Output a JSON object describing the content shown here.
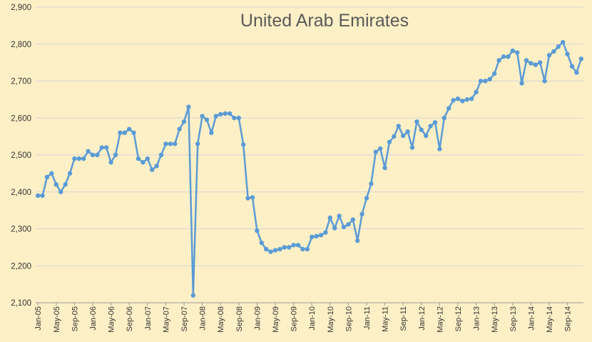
{
  "chart_data": {
    "type": "line",
    "title": "United Arab Emirates",
    "xlabel": "",
    "ylabel": "",
    "ylim": [
      2100,
      2900
    ],
    "y_ticks": [
      "2,100",
      "2,200",
      "2,300",
      "2,400",
      "2,500",
      "2,600",
      "2,700",
      "2,800",
      "2,900"
    ],
    "x_tick_labels": [
      "Jan-05",
      "May-05",
      "Sep-05",
      "Jan-06",
      "May-06",
      "Sep-06",
      "Jan-07",
      "May-07",
      "Sep-07",
      "Jan-08",
      "May-08",
      "Sep-08",
      "Jan-09",
      "May-09",
      "Sep-09",
      "Jan-10",
      "May-10",
      "Sep-10",
      "Jan-11",
      "May-11",
      "Sep-11",
      "Jan-12",
      "May-12",
      "Sep-12",
      "Jan-13",
      "May-13",
      "Sep-13",
      "Jan-14",
      "May-14",
      "Sep-14"
    ],
    "x_start": "Jan-05",
    "x_end": "Dec-14",
    "grid": true,
    "legend": "none",
    "line_color": "#5b9bd5",
    "series": [
      {
        "values": [
          2390,
          2390,
          2440,
          2450,
          2420,
          2400,
          2420,
          2450,
          2490,
          2490,
          2490,
          2510,
          2500,
          2500,
          2520,
          2520,
          2480,
          2500,
          2560,
          2560,
          2570,
          2560,
          2490,
          2480,
          2490,
          2460,
          2470,
          2500,
          2530,
          2530,
          2530,
          2570,
          2590,
          2630,
          2120,
          2530,
          2605,
          2595,
          2560,
          2605,
          2610,
          2612,
          2612,
          2600,
          2600,
          2528,
          2383,
          2385,
          2295,
          2262,
          2245,
          2238,
          2242,
          2245,
          2250,
          2250,
          2256,
          2256,
          2245,
          2245,
          2278,
          2280,
          2283,
          2290,
          2330,
          2302,
          2335,
          2305,
          2312,
          2325,
          2268,
          2340,
          2383,
          2422,
          2508,
          2517,
          2465,
          2535,
          2550,
          2578,
          2552,
          2563,
          2520,
          2590,
          2568,
          2552,
          2578,
          2588,
          2516,
          2600,
          2626,
          2648,
          2652,
          2646,
          2650,
          2652,
          2670,
          2700,
          2700,
          2705,
          2720,
          2756,
          2766,
          2766,
          2782,
          2777,
          2694,
          2756,
          2748,
          2744,
          2750,
          2700,
          2770,
          2780,
          2793,
          2805,
          2773,
          2740,
          2723,
          2760
        ]
      }
    ]
  }
}
